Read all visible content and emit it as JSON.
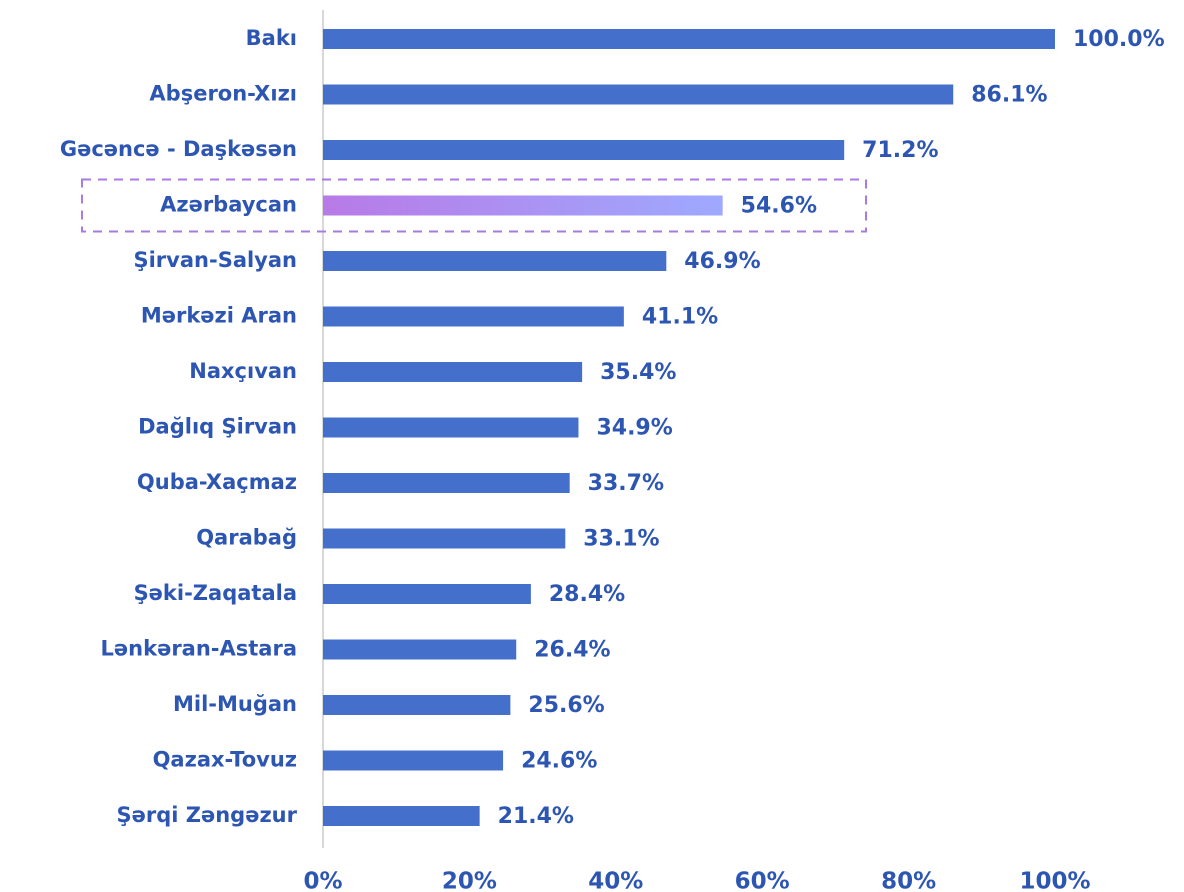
{
  "chart_data": {
    "type": "barh",
    "categories": [
      "Bakı",
      "Abşeron-Xızı",
      "Gəcəncə - Daşkəsən",
      "Azərbaycan",
      "Şirvan-Salyan",
      "Mərkəzi Aran",
      "Naxçıvan",
      "Dağlıq Şirvan",
      "Quba-Xaçmaz",
      "Qarabağ",
      "Şəki-Zaqatala",
      "Lənkəran-Astara",
      "Mil-Muğan",
      "Qazax-Tovuz",
      "Şərqi Zəngəzur"
    ],
    "values": [
      100.0,
      86.1,
      71.2,
      54.6,
      46.9,
      41.1,
      35.4,
      34.9,
      33.7,
      33.1,
      28.4,
      26.4,
      25.6,
      24.6,
      21.4
    ],
    "value_labels": [
      "100.0%",
      "86.1%",
      "71.2%",
      "54.6%",
      "46.9%",
      "41.1%",
      "35.4%",
      "34.9%",
      "33.7%",
      "33.1%",
      "28.4%",
      "26.4%",
      "25.6%",
      "24.6%",
      "21.4%"
    ],
    "color": "#4470cc",
    "highlight": "Azərbaycan",
    "highlight_colors": [
      "#b87ae6",
      "#9ea9ff"
    ],
    "xlim": [
      0,
      100
    ],
    "xticks": [
      {
        "value": 0,
        "label": "0%"
      },
      {
        "value": 20,
        "label": "20%"
      },
      {
        "value": 40,
        "label": "40%"
      },
      {
        "value": 60,
        "label": "60%"
      },
      {
        "value": 80,
        "label": "80%"
      },
      {
        "value": 100,
        "label": "100%"
      }
    ],
    "grid": false
  }
}
